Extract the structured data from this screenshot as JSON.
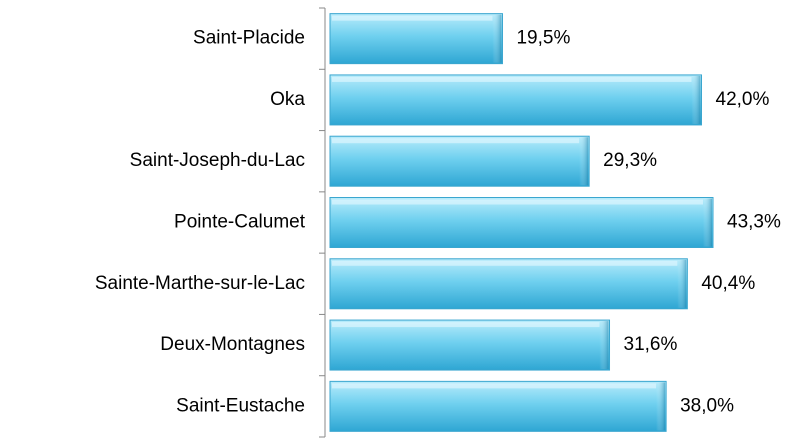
{
  "chart_data": {
    "type": "bar",
    "orientation": "horizontal",
    "categories": [
      "Saint-Placide",
      "Oka",
      "Saint-Joseph-du-Lac",
      "Pointe-Calumet",
      "Sainte-Marthe-sur-le-Lac",
      "Deux-Montagnes",
      "Saint-Eustache"
    ],
    "values": [
      19.5,
      42.0,
      29.3,
      43.3,
      40.4,
      31.6,
      38.0
    ],
    "value_labels": [
      "19,5%",
      "42,0%",
      "29,3%",
      "43,3%",
      "40,4%",
      "31,6%",
      "38,0%"
    ],
    "color": "#4ec0e6"
  }
}
